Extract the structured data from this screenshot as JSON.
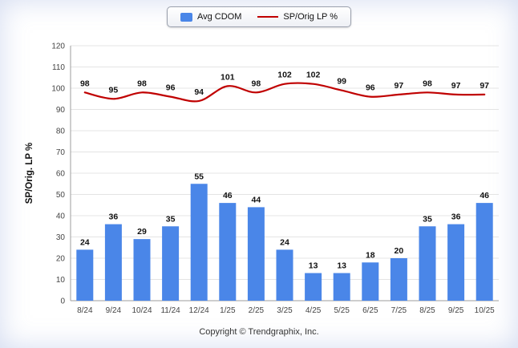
{
  "chart_data": {
    "type": "bar+line",
    "categories": [
      "8/24",
      "9/24",
      "10/24",
      "11/24",
      "12/24",
      "1/25",
      "2/25",
      "3/25",
      "4/25",
      "5/25",
      "6/25",
      "7/25",
      "8/25",
      "9/25",
      "10/25"
    ],
    "series": [
      {
        "name": "Avg CDOM",
        "type": "bar",
        "color": "#4a86e8",
        "values": [
          24,
          36,
          29,
          35,
          55,
          46,
          44,
          24,
          13,
          13,
          18,
          20,
          35,
          36,
          46
        ]
      },
      {
        "name": "SP/Orig LP %",
        "type": "line",
        "color": "#c00000",
        "values": [
          98,
          95,
          98,
          96,
          94,
          101,
          98,
          102,
          102,
          99,
          96,
          97,
          98,
          97,
          97
        ]
      }
    ],
    "title": "",
    "xlabel": "",
    "ylabel": "SP/Orig. LP %",
    "ylim": [
      0,
      120
    ],
    "ytick_step": 10,
    "grid": true,
    "legend_position": "top"
  },
  "legend": {
    "items": [
      {
        "label": "Avg CDOM",
        "swatch": "square",
        "color": "#4a86e8"
      },
      {
        "label": "SP/Orig LP %",
        "swatch": "line",
        "color": "#c00000"
      }
    ]
  },
  "footer": {
    "text": "Copyright © Trendgraphix, Inc."
  }
}
